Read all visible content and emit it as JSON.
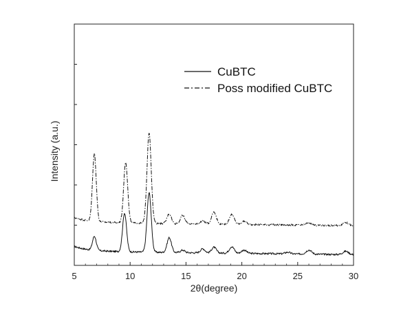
{
  "chart_data": {
    "type": "line",
    "title": "",
    "xlabel": "2θ(degree)",
    "ylabel": "Intensity (a.u.)",
    "xlim": [
      5,
      30
    ],
    "x_ticks": [
      "5",
      "10",
      "15",
      "20",
      "25",
      "30"
    ],
    "y_ticks_labeled": false,
    "grid": false,
    "legend_placement": "top-right",
    "series": [
      {
        "name": "CuBTC",
        "line_style": "solid",
        "color": "#111111",
        "baseline_level": 0.17,
        "peaks": [
          {
            "x": 6.8,
            "height": 0.17
          },
          {
            "x": 9.5,
            "height": 0.47
          },
          {
            "x": 11.7,
            "height": 0.72
          },
          {
            "x": 13.5,
            "height": 0.18
          },
          {
            "x": 14.7,
            "height": 0.03
          },
          {
            "x": 16.5,
            "height": 0.05
          },
          {
            "x": 17.5,
            "height": 0.07
          },
          {
            "x": 19.1,
            "height": 0.08
          },
          {
            "x": 20.2,
            "height": 0.04
          },
          {
            "x": 24.1,
            "height": 0.02
          },
          {
            "x": 26.0,
            "height": 0.05
          },
          {
            "x": 29.3,
            "height": 0.04
          }
        ]
      },
      {
        "name": "Poss modified CuBTC",
        "line_style": "dash-dot",
        "color": "#111111",
        "baseline_level": 0.52,
        "peaks": [
          {
            "x": 6.8,
            "height": 0.82
          },
          {
            "x": 9.6,
            "height": 0.74
          },
          {
            "x": 11.7,
            "height": 1.1
          },
          {
            "x": 13.5,
            "height": 0.12
          },
          {
            "x": 14.7,
            "height": 0.1
          },
          {
            "x": 16.5,
            "height": 0.04
          },
          {
            "x": 17.5,
            "height": 0.15
          },
          {
            "x": 19.1,
            "height": 0.12
          },
          {
            "x": 20.2,
            "height": 0.04
          },
          {
            "x": 26.0,
            "height": 0.03
          },
          {
            "x": 29.3,
            "height": 0.04
          }
        ]
      }
    ]
  }
}
